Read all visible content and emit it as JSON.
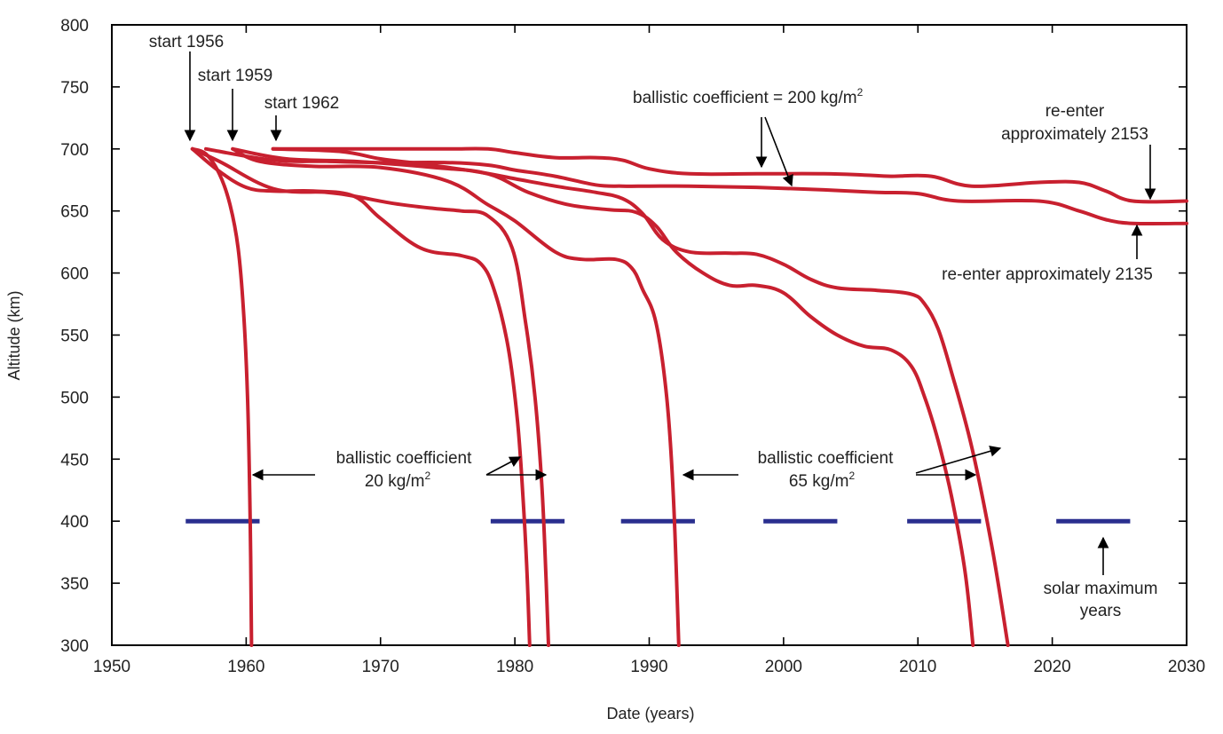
{
  "chart_data": {
    "type": "line",
    "title": "",
    "xlabel": "Date (years)",
    "ylabel": "Altitude (km)",
    "xlim": [
      1950,
      2030
    ],
    "ylim": [
      300,
      800
    ],
    "xticks": [
      1950,
      1960,
      1970,
      1980,
      1990,
      2000,
      2010,
      2020,
      2030
    ],
    "yticks": [
      300,
      350,
      400,
      450,
      500,
      550,
      600,
      650,
      700,
      750,
      800
    ],
    "grid": false,
    "series": [
      {
        "x": [
          1956,
          1957,
          1958,
          1958.8,
          1959.4,
          1959.8,
          1960.1,
          1960.3,
          1960.4
        ],
        "y": [
          700,
          696,
          680,
          655,
          620,
          570,
          500,
          400,
          300
        ]
      },
      {
        "x": [
          1956,
          1958,
          1960,
          1962,
          1965,
          1968,
          1970,
          1973,
          1976,
          1977.5,
          1978.5,
          1979.5,
          1980.2,
          1980.6,
          1980.9,
          1981.1
        ],
        "y": [
          700,
          682,
          669,
          666,
          666,
          662,
          644,
          620,
          614,
          607,
          585,
          540,
          480,
          420,
          360,
          300
        ]
      },
      {
        "x": [
          1956,
          1958,
          1962,
          1966,
          1968,
          1971,
          1974,
          1976,
          1978,
          1979.8,
          1980.8,
          1981.5,
          1982.0,
          1982.3,
          1982.5
        ],
        "y": [
          700,
          690,
          668,
          665,
          662,
          656,
          652,
          650,
          646,
          620,
          560,
          500,
          430,
          360,
          300
        ]
      },
      {
        "x": [
          1959,
          1961,
          1965,
          1970,
          1975,
          1978,
          1980,
          1983,
          1985,
          1987.5,
          1988.7,
          1989.5,
          1990.5,
          1991.3,
          1991.8,
          1992.2
        ],
        "y": [
          700,
          690,
          686,
          685,
          674,
          655,
          642,
          617,
          611,
          611,
          604,
          587,
          560,
          500,
          420,
          300
        ]
      },
      {
        "x": [
          1959,
          1963,
          1968,
          1974,
          1978,
          1981,
          1984,
          1987,
          1989,
          1990.5,
          1992,
          1994,
          1996,
          1998,
          2000,
          2002,
          2004,
          2006,
          2008,
          2009.5,
          2010.5,
          2011.5,
          2012.5,
          2013.5,
          2014.1
        ],
        "y": [
          700,
          692,
          690,
          685,
          680,
          665,
          655,
          651,
          649,
          638,
          617,
          600,
          590,
          590,
          584,
          565,
          550,
          541,
          538,
          525,
          500,
          465,
          420,
          360,
          300
        ]
      },
      {
        "x": [
          1962,
          1967,
          1970,
          1973,
          1977,
          1980,
          1983,
          1986,
          1988,
          1989.5,
          1991,
          1993,
          1996,
          1998,
          2000,
          2002,
          2004,
          2007,
          2009.5,
          2010.5,
          2011.5,
          2012.5,
          2014,
          2015.5,
          2016.7
        ],
        "y": [
          700,
          698,
          692,
          688,
          682,
          676,
          670,
          665,
          660,
          648,
          627,
          617,
          616,
          615,
          607,
          595,
          588,
          586,
          583,
          575,
          555,
          520,
          460,
          380,
          300
        ]
      },
      {
        "x": [
          1962,
          1965,
          1970,
          1975,
          1978,
          1980,
          1983,
          1986,
          1988,
          1990,
          1993,
          1998,
          2003,
          2006,
          2008,
          2011,
          2014,
          2019,
          2022,
          2024,
          2026,
          2030
        ],
        "y": [
          700,
          700,
          700,
          700,
          700,
          697,
          693,
          693,
          691,
          684,
          680,
          680,
          680,
          679,
          678,
          678,
          670,
          673,
          673,
          666,
          658,
          658
        ]
      },
      {
        "x": [
          1957,
          1962,
          1966,
          1970,
          1975,
          1978,
          1980,
          1983,
          1986,
          1988,
          1990,
          1993,
          1998,
          2003,
          2007,
          2010,
          2013,
          2019,
          2022,
          2024,
          2026,
          2030
        ],
        "y": [
          700,
          691,
          690,
          689,
          689,
          687,
          683,
          678,
          671,
          670,
          670,
          670,
          669,
          667,
          665,
          664,
          658,
          658,
          650,
          643,
          640,
          640
        ]
      }
    ],
    "solar_maximum_bars": [
      {
        "x0": 1955.5,
        "x1": 1961.0,
        "y": 400
      },
      {
        "x0": 1978.2,
        "x1": 1983.7,
        "y": 400
      },
      {
        "x0": 1987.9,
        "x1": 1993.4,
        "y": 400
      },
      {
        "x0": 1998.5,
        "x1": 2004.0,
        "y": 400
      },
      {
        "x0": 2009.2,
        "x1": 2014.7,
        "y": 400
      },
      {
        "x0": 2020.3,
        "x1": 2025.8,
        "y": 400
      }
    ],
    "colors": {
      "decay_curves": "#c8202f",
      "solar_maximum": "#2a2f8f"
    },
    "annotations": [
      {
        "key": "start1956",
        "text": "start 1956"
      },
      {
        "key": "start1959",
        "text": "start 1959"
      },
      {
        "key": "start1962",
        "text": "start 1962"
      },
      {
        "key": "bc200",
        "text": "ballistic coefficient = 200 kg/m",
        "superscript": "2"
      },
      {
        "key": "reenter2153_l1",
        "text": "re-enter"
      },
      {
        "key": "reenter2153_l2",
        "text": "approximately 2153"
      },
      {
        "key": "reenter2135",
        "text": "re-enter approximately 2135"
      },
      {
        "key": "bc20_l1",
        "text": "ballistic coefficient"
      },
      {
        "key": "bc20_l2",
        "text": "20 kg/m",
        "superscript": "2"
      },
      {
        "key": "bc65_l1",
        "text": "ballistic coefficient"
      },
      {
        "key": "bc65_l2",
        "text": "65 kg/m",
        "superscript": "2"
      },
      {
        "key": "solar_l1",
        "text": "solar maximum"
      },
      {
        "key": "solar_l2",
        "text": "years"
      }
    ]
  }
}
